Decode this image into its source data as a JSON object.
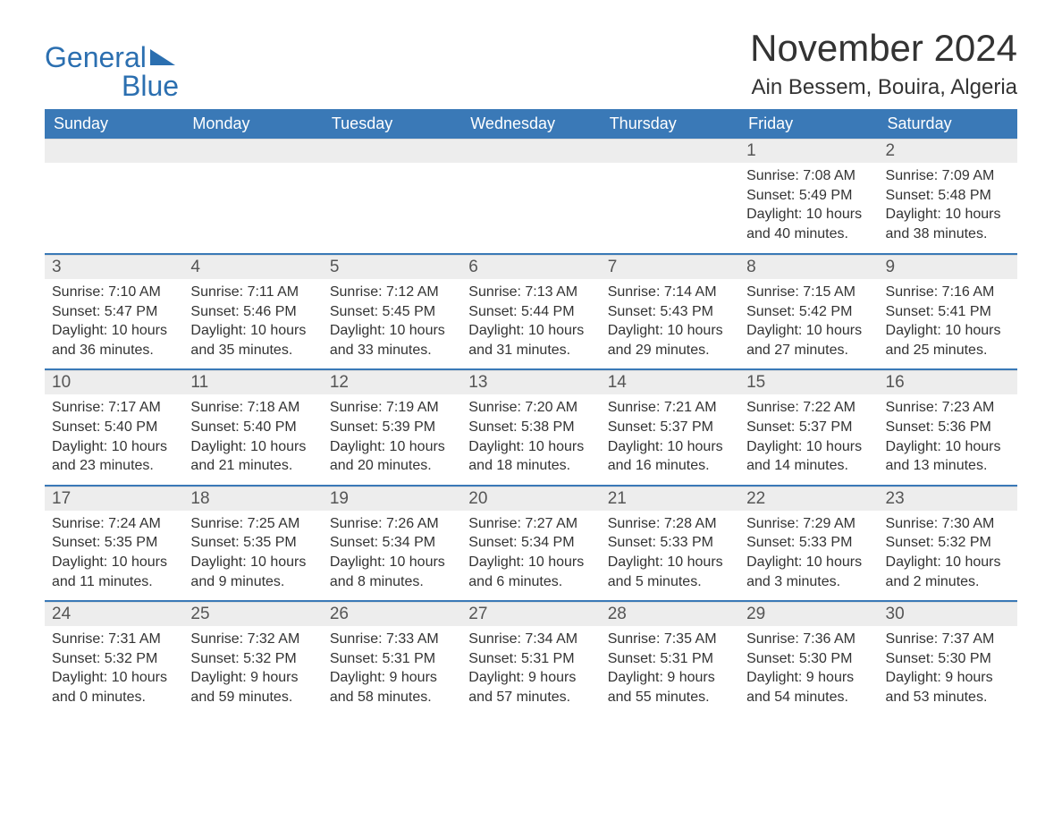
{
  "brand": {
    "text1": "General",
    "text2": "Blue",
    "color": "#2b6fb0"
  },
  "title": "November 2024",
  "location": "Ain Bessem, Bouira, Algeria",
  "colors": {
    "header_bg": "#3a79b7",
    "header_text": "#ffffff",
    "daynum_bg": "#ededed",
    "week_divider": "#3a79b7",
    "body_text": "#333333",
    "page_bg": "#ffffff"
  },
  "day_names": [
    "Sunday",
    "Monday",
    "Tuesday",
    "Wednesday",
    "Thursday",
    "Friday",
    "Saturday"
  ],
  "weeks": [
    [
      {
        "n": "",
        "empty": true
      },
      {
        "n": "",
        "empty": true
      },
      {
        "n": "",
        "empty": true
      },
      {
        "n": "",
        "empty": true
      },
      {
        "n": "",
        "empty": true
      },
      {
        "n": "1",
        "sunrise": "Sunrise: 7:08 AM",
        "sunset": "Sunset: 5:49 PM",
        "daylight1": "Daylight: 10 hours",
        "daylight2": "and 40 minutes."
      },
      {
        "n": "2",
        "sunrise": "Sunrise: 7:09 AM",
        "sunset": "Sunset: 5:48 PM",
        "daylight1": "Daylight: 10 hours",
        "daylight2": "and 38 minutes."
      }
    ],
    [
      {
        "n": "3",
        "sunrise": "Sunrise: 7:10 AM",
        "sunset": "Sunset: 5:47 PM",
        "daylight1": "Daylight: 10 hours",
        "daylight2": "and 36 minutes."
      },
      {
        "n": "4",
        "sunrise": "Sunrise: 7:11 AM",
        "sunset": "Sunset: 5:46 PM",
        "daylight1": "Daylight: 10 hours",
        "daylight2": "and 35 minutes."
      },
      {
        "n": "5",
        "sunrise": "Sunrise: 7:12 AM",
        "sunset": "Sunset: 5:45 PM",
        "daylight1": "Daylight: 10 hours",
        "daylight2": "and 33 minutes."
      },
      {
        "n": "6",
        "sunrise": "Sunrise: 7:13 AM",
        "sunset": "Sunset: 5:44 PM",
        "daylight1": "Daylight: 10 hours",
        "daylight2": "and 31 minutes."
      },
      {
        "n": "7",
        "sunrise": "Sunrise: 7:14 AM",
        "sunset": "Sunset: 5:43 PM",
        "daylight1": "Daylight: 10 hours",
        "daylight2": "and 29 minutes."
      },
      {
        "n": "8",
        "sunrise": "Sunrise: 7:15 AM",
        "sunset": "Sunset: 5:42 PM",
        "daylight1": "Daylight: 10 hours",
        "daylight2": "and 27 minutes."
      },
      {
        "n": "9",
        "sunrise": "Sunrise: 7:16 AM",
        "sunset": "Sunset: 5:41 PM",
        "daylight1": "Daylight: 10 hours",
        "daylight2": "and 25 minutes."
      }
    ],
    [
      {
        "n": "10",
        "sunrise": "Sunrise: 7:17 AM",
        "sunset": "Sunset: 5:40 PM",
        "daylight1": "Daylight: 10 hours",
        "daylight2": "and 23 minutes."
      },
      {
        "n": "11",
        "sunrise": "Sunrise: 7:18 AM",
        "sunset": "Sunset: 5:40 PM",
        "daylight1": "Daylight: 10 hours",
        "daylight2": "and 21 minutes."
      },
      {
        "n": "12",
        "sunrise": "Sunrise: 7:19 AM",
        "sunset": "Sunset: 5:39 PM",
        "daylight1": "Daylight: 10 hours",
        "daylight2": "and 20 minutes."
      },
      {
        "n": "13",
        "sunrise": "Sunrise: 7:20 AM",
        "sunset": "Sunset: 5:38 PM",
        "daylight1": "Daylight: 10 hours",
        "daylight2": "and 18 minutes."
      },
      {
        "n": "14",
        "sunrise": "Sunrise: 7:21 AM",
        "sunset": "Sunset: 5:37 PM",
        "daylight1": "Daylight: 10 hours",
        "daylight2": "and 16 minutes."
      },
      {
        "n": "15",
        "sunrise": "Sunrise: 7:22 AM",
        "sunset": "Sunset: 5:37 PM",
        "daylight1": "Daylight: 10 hours",
        "daylight2": "and 14 minutes."
      },
      {
        "n": "16",
        "sunrise": "Sunrise: 7:23 AM",
        "sunset": "Sunset: 5:36 PM",
        "daylight1": "Daylight: 10 hours",
        "daylight2": "and 13 minutes."
      }
    ],
    [
      {
        "n": "17",
        "sunrise": "Sunrise: 7:24 AM",
        "sunset": "Sunset: 5:35 PM",
        "daylight1": "Daylight: 10 hours",
        "daylight2": "and 11 minutes."
      },
      {
        "n": "18",
        "sunrise": "Sunrise: 7:25 AM",
        "sunset": "Sunset: 5:35 PM",
        "daylight1": "Daylight: 10 hours",
        "daylight2": "and 9 minutes."
      },
      {
        "n": "19",
        "sunrise": "Sunrise: 7:26 AM",
        "sunset": "Sunset: 5:34 PM",
        "daylight1": "Daylight: 10 hours",
        "daylight2": "and 8 minutes."
      },
      {
        "n": "20",
        "sunrise": "Sunrise: 7:27 AM",
        "sunset": "Sunset: 5:34 PM",
        "daylight1": "Daylight: 10 hours",
        "daylight2": "and 6 minutes."
      },
      {
        "n": "21",
        "sunrise": "Sunrise: 7:28 AM",
        "sunset": "Sunset: 5:33 PM",
        "daylight1": "Daylight: 10 hours",
        "daylight2": "and 5 minutes."
      },
      {
        "n": "22",
        "sunrise": "Sunrise: 7:29 AM",
        "sunset": "Sunset: 5:33 PM",
        "daylight1": "Daylight: 10 hours",
        "daylight2": "and 3 minutes."
      },
      {
        "n": "23",
        "sunrise": "Sunrise: 7:30 AM",
        "sunset": "Sunset: 5:32 PM",
        "daylight1": "Daylight: 10 hours",
        "daylight2": "and 2 minutes."
      }
    ],
    [
      {
        "n": "24",
        "sunrise": "Sunrise: 7:31 AM",
        "sunset": "Sunset: 5:32 PM",
        "daylight1": "Daylight: 10 hours",
        "daylight2": "and 0 minutes."
      },
      {
        "n": "25",
        "sunrise": "Sunrise: 7:32 AM",
        "sunset": "Sunset: 5:32 PM",
        "daylight1": "Daylight: 9 hours",
        "daylight2": "and 59 minutes."
      },
      {
        "n": "26",
        "sunrise": "Sunrise: 7:33 AM",
        "sunset": "Sunset: 5:31 PM",
        "daylight1": "Daylight: 9 hours",
        "daylight2": "and 58 minutes."
      },
      {
        "n": "27",
        "sunrise": "Sunrise: 7:34 AM",
        "sunset": "Sunset: 5:31 PM",
        "daylight1": "Daylight: 9 hours",
        "daylight2": "and 57 minutes."
      },
      {
        "n": "28",
        "sunrise": "Sunrise: 7:35 AM",
        "sunset": "Sunset: 5:31 PM",
        "daylight1": "Daylight: 9 hours",
        "daylight2": "and 55 minutes."
      },
      {
        "n": "29",
        "sunrise": "Sunrise: 7:36 AM",
        "sunset": "Sunset: 5:30 PM",
        "daylight1": "Daylight: 9 hours",
        "daylight2": "and 54 minutes."
      },
      {
        "n": "30",
        "sunrise": "Sunrise: 7:37 AM",
        "sunset": "Sunset: 5:30 PM",
        "daylight1": "Daylight: 9 hours",
        "daylight2": "and 53 minutes."
      }
    ]
  ]
}
